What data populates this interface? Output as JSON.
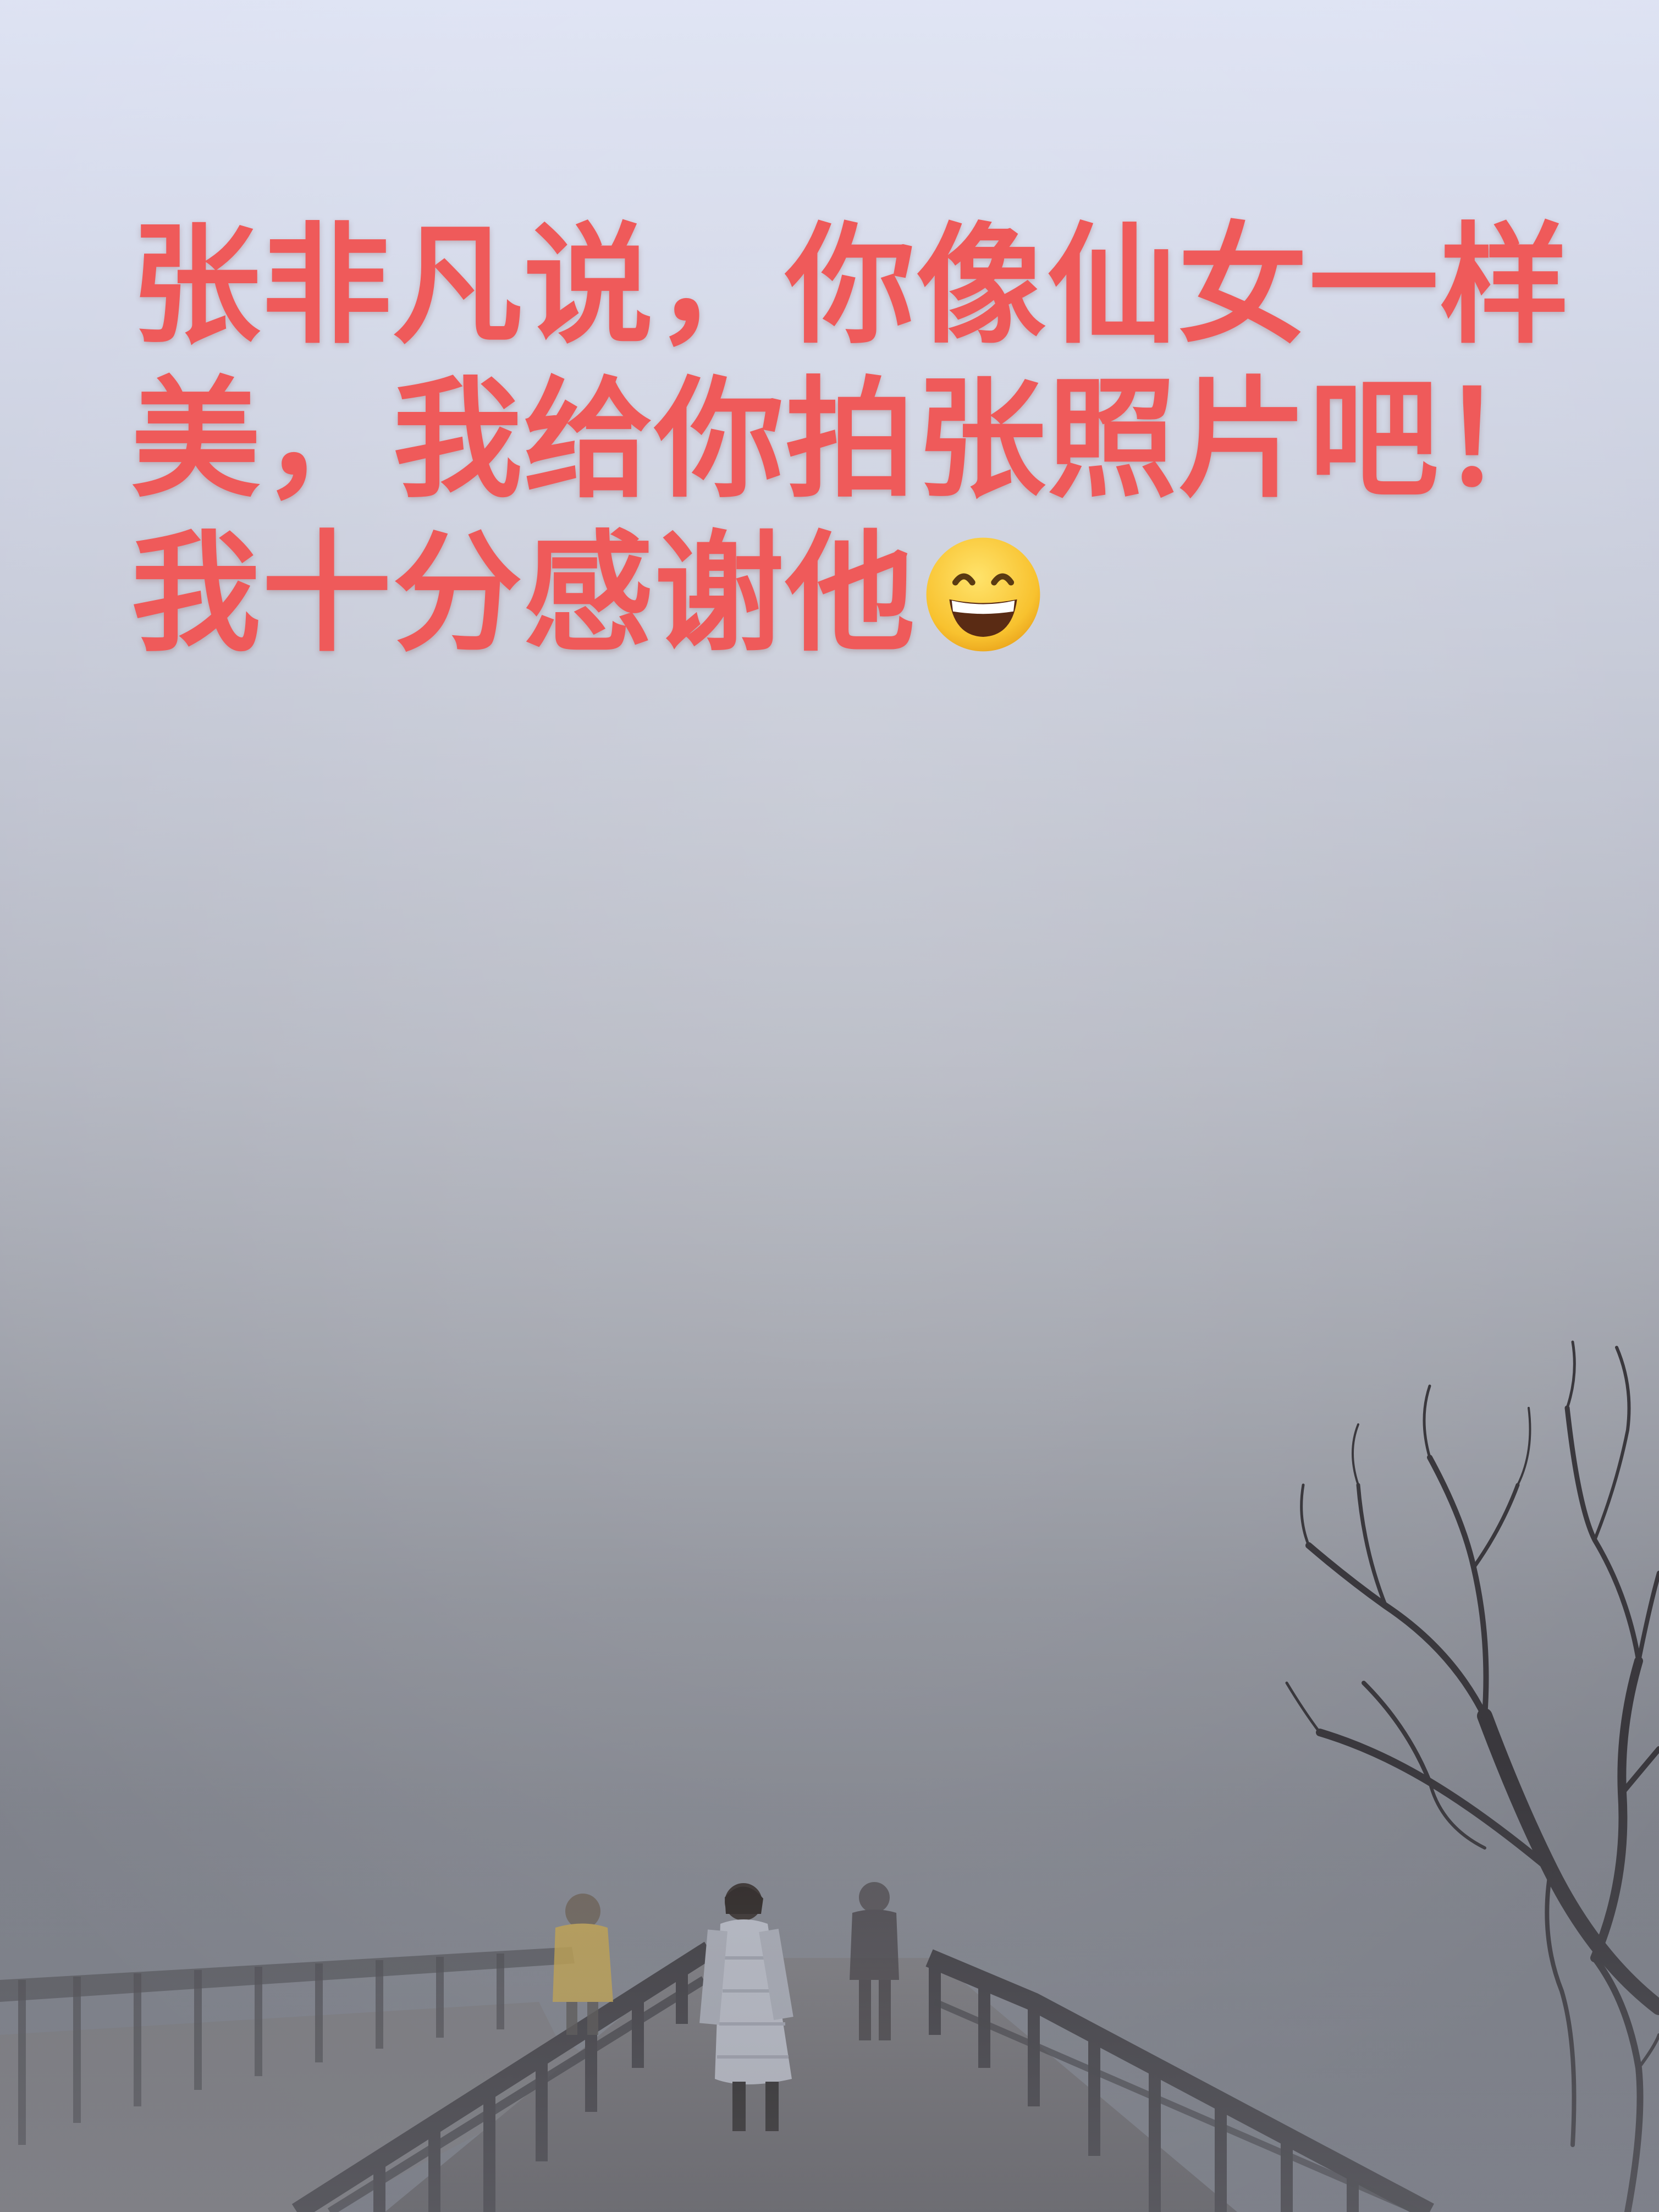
{
  "caption": {
    "line1": "张非凡说，你像仙女一样",
    "line2": "美，我给你拍张照片吧！",
    "line3": "我十分感谢他",
    "emoji": "grinning-face-with-smiling-eyes-icon"
  },
  "colors": {
    "caption_text": "#ef5a5a",
    "sky_top": "#dde2f3",
    "fog_bottom": "#777a83"
  }
}
